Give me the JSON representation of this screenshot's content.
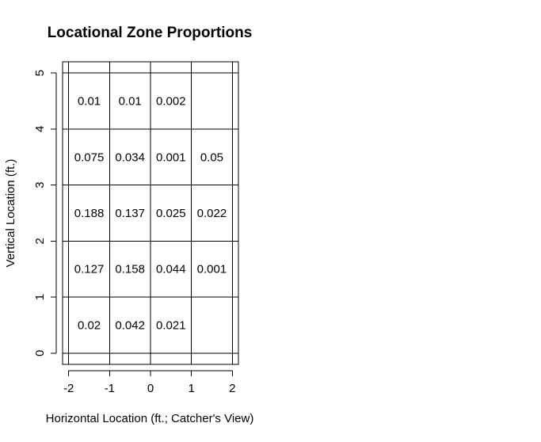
{
  "chart_data": {
    "type": "heatmap",
    "title": "Locational Zone Proportions",
    "xlabel": "Horizontal Location (ft.; Catcher's View)",
    "ylabel": "Vertical Location (ft.)",
    "xlim": [
      -2.15,
      2.15
    ],
    "ylim": [
      -0.2,
      5.2
    ],
    "x_ticks": [
      -2,
      -1,
      0,
      1,
      2
    ],
    "x_tick_labels": [
      "-2",
      "-1",
      "0",
      "1",
      "2"
    ],
    "y_ticks": [
      0,
      1,
      2,
      3,
      4,
      5
    ],
    "y_tick_labels": [
      "0",
      "1",
      "2",
      "3",
      "4",
      "5"
    ],
    "grid_x": [
      -2,
      -1,
      0,
      1,
      2
    ],
    "grid_y": [
      0,
      1,
      2,
      3,
      4,
      5
    ],
    "cells": [
      {
        "x": -1.5,
        "y": 4.5,
        "label": "0.01"
      },
      {
        "x": -0.5,
        "y": 4.5,
        "label": "0.01"
      },
      {
        "x": 0.5,
        "y": 4.5,
        "label": "0.002"
      },
      {
        "x": -1.5,
        "y": 3.5,
        "label": "0.075"
      },
      {
        "x": -0.5,
        "y": 3.5,
        "label": "0.034"
      },
      {
        "x": 0.5,
        "y": 3.5,
        "label": "0.001"
      },
      {
        "x": 1.5,
        "y": 3.5,
        "label": "0.05"
      },
      {
        "x": -1.5,
        "y": 2.5,
        "label": "0.188"
      },
      {
        "x": -0.5,
        "y": 2.5,
        "label": "0.137"
      },
      {
        "x": 0.5,
        "y": 2.5,
        "label": "0.025"
      },
      {
        "x": 1.5,
        "y": 2.5,
        "label": "0.022"
      },
      {
        "x": -1.5,
        "y": 1.5,
        "label": "0.127"
      },
      {
        "x": -0.5,
        "y": 1.5,
        "label": "0.158"
      },
      {
        "x": 0.5,
        "y": 1.5,
        "label": "0.044"
      },
      {
        "x": 1.5,
        "y": 1.5,
        "label": "0.001"
      },
      {
        "x": -1.5,
        "y": 0.5,
        "label": "0.02"
      },
      {
        "x": -0.5,
        "y": 0.5,
        "label": "0.042"
      },
      {
        "x": 0.5,
        "y": 0.5,
        "label": "0.021"
      }
    ]
  }
}
